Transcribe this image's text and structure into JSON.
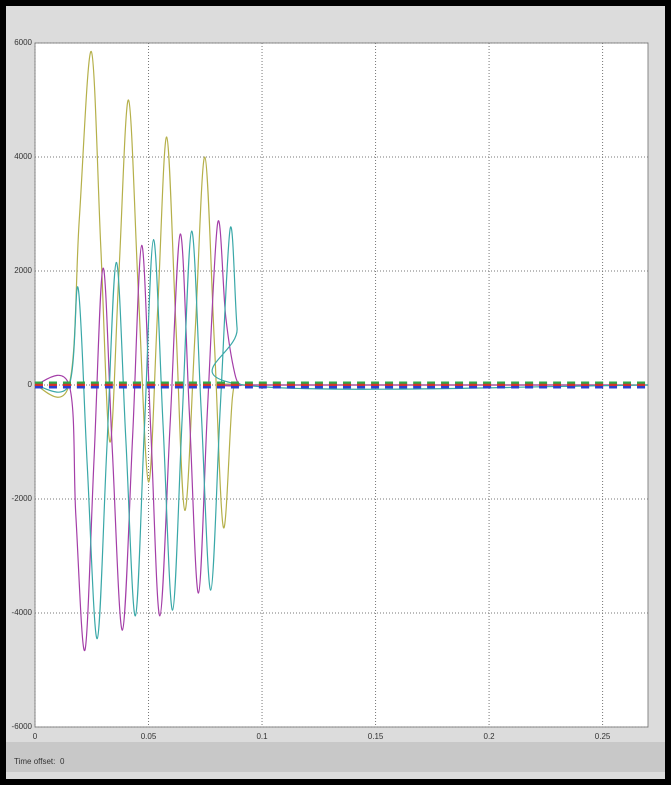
{
  "chart_data": {
    "type": "line",
    "time_offset_label": "Time offset:",
    "time_offset": 0,
    "xlim": [
      0,
      0.27
    ],
    "xticks": [
      0,
      0.05,
      0.1,
      0.15,
      0.2,
      0.25
    ],
    "ylim": [
      -6000,
      6000
    ],
    "yticks": [
      -6000,
      -4000,
      -2000,
      0,
      2000,
      4000,
      6000
    ],
    "grid": true,
    "series": [
      {
        "color": "#b5b04a",
        "dashed": false,
        "x": [
          0,
          0.015,
          0.0195,
          0.0248,
          0.029,
          0.033,
          0.037,
          0.0412,
          0.0455,
          0.05,
          0.054,
          0.058,
          0.062,
          0.066,
          0.0705,
          0.0748,
          0.079,
          0.083,
          0.087,
          0.09,
          0.095,
          0.27
        ],
        "values": [
          0,
          0,
          2900,
          5850,
          2400,
          -1000,
          2000,
          5000,
          1650,
          -1700,
          1300,
          4350,
          1100,
          -2200,
          900,
          4000,
          750,
          -2500,
          -200,
          0,
          0,
          0
        ]
      },
      {
        "color": "#a43ea8",
        "dashed": false,
        "x": [
          0,
          0.015,
          0.018,
          0.022,
          0.026,
          0.03,
          0.034,
          0.0385,
          0.043,
          0.047,
          0.051,
          0.055,
          0.0595,
          0.064,
          0.068,
          0.072,
          0.076,
          0.0805,
          0.084,
          0.088,
          0.091,
          0.095,
          0.27
        ],
        "values": [
          0,
          0,
          -2300,
          -4650,
          -1300,
          2050,
          -1100,
          -4300,
          -900,
          2450,
          -800,
          -4050,
          -700,
          2650,
          -500,
          -3650,
          -400,
          2850,
          1200,
          200,
          0,
          0,
          0
        ]
      },
      {
        "color": "#3aa8a8",
        "dashed": false,
        "x": [
          0,
          0.015,
          0.019,
          0.023,
          0.0274,
          0.0316,
          0.0358,
          0.04,
          0.0442,
          0.0482,
          0.0522,
          0.0564,
          0.0606,
          0.0648,
          0.069,
          0.0732,
          0.0774,
          0.0816,
          0.086,
          0.089,
          0.092,
          0.27
        ],
        "values": [
          0,
          0,
          1700,
          -1400,
          -4450,
          -1150,
          2150,
          -950,
          -4050,
          -750,
          2550,
          -700,
          -3950,
          -600,
          2700,
          -450,
          -3600,
          -400,
          2750,
          1000,
          0,
          0
        ]
      },
      {
        "color": "#2fa84a",
        "dashed": true,
        "x": [
          0,
          0.27
        ],
        "values": [
          40,
          40
        ]
      },
      {
        "color": "#d0322d",
        "dashed": true,
        "x": [
          0,
          0.27
        ],
        "values": [
          0,
          0
        ]
      },
      {
        "color": "#2d3fd0",
        "dashed": true,
        "x": [
          0,
          0.27
        ],
        "values": [
          -40,
          -40
        ]
      }
    ]
  }
}
